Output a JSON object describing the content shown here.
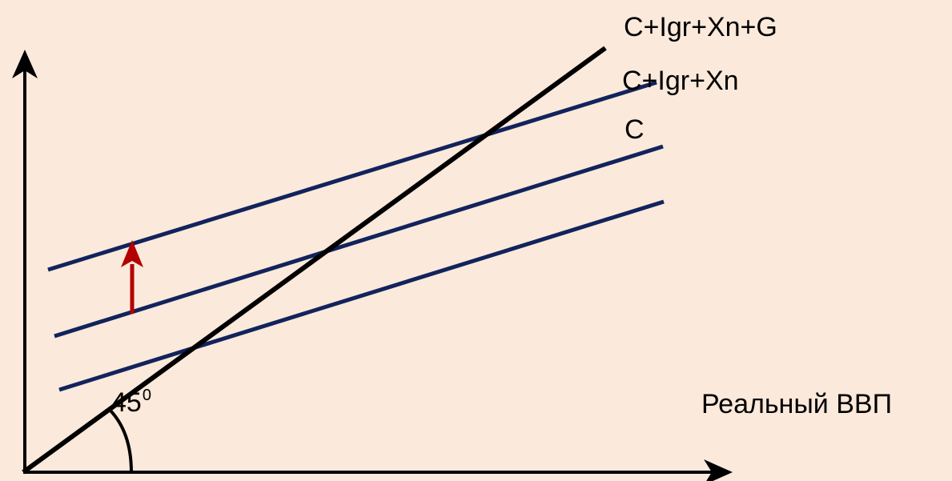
{
  "labels": {
    "line_45": "C+Igr+Xn+G",
    "line_upper": "C+Igr+Xn",
    "line_middle": "C",
    "x_axis": "Реальный ВВП",
    "angle_value": "45",
    "angle_sup": "0"
  },
  "colors": {
    "background": "#fbe9db",
    "axis": "#000000",
    "line_45": "#000000",
    "parallel_lines": "#12235c",
    "shift_arrow": "#b30000"
  }
}
